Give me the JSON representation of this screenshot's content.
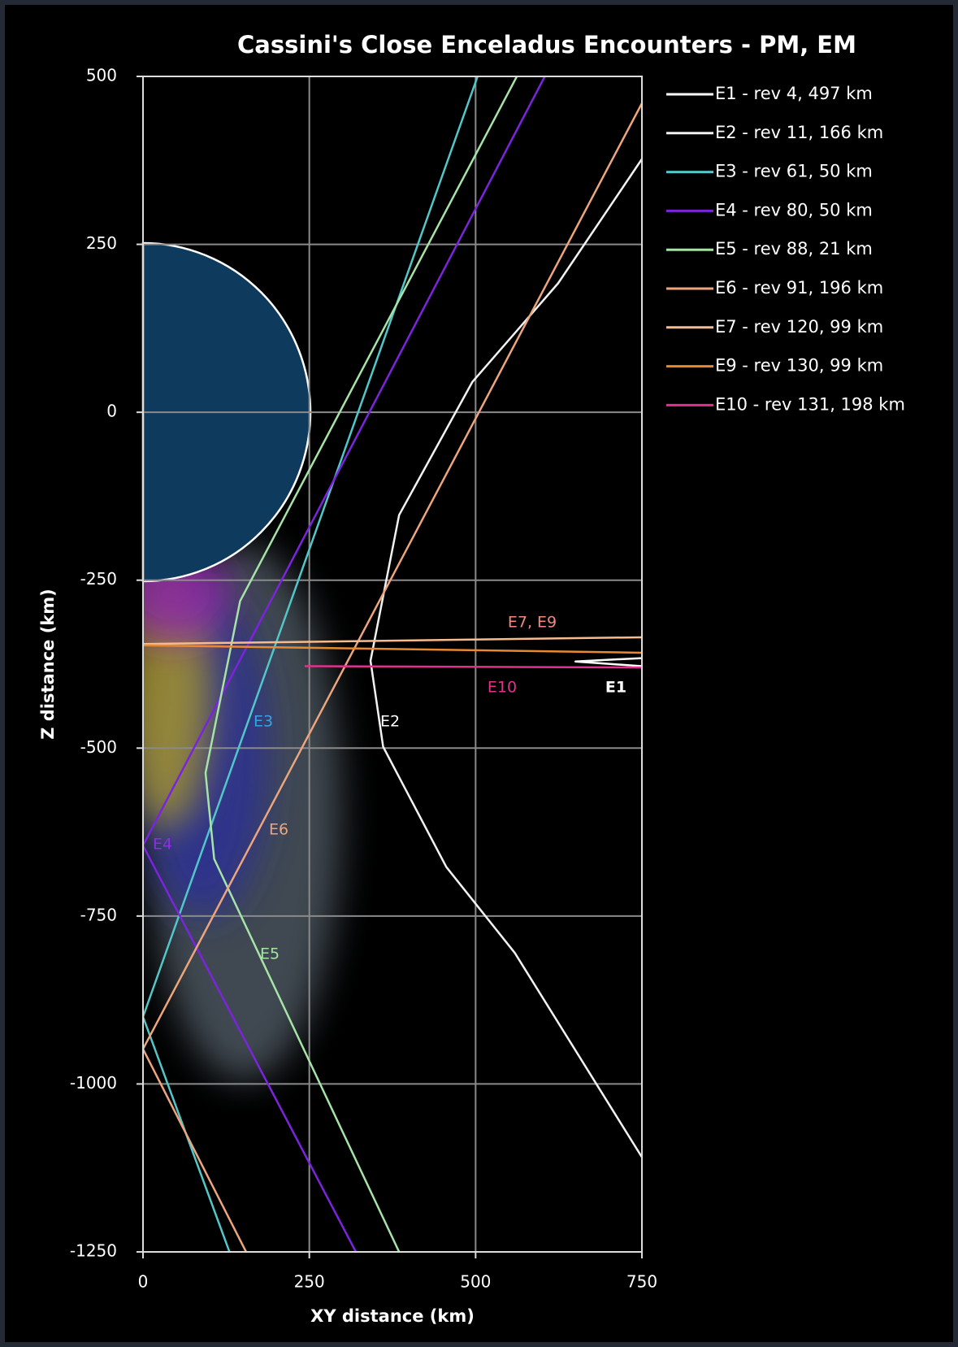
{
  "chart_data": {
    "type": "line",
    "title": "Cassini's Close Enceladus Encounters - PM, EM",
    "xlabel": "XY distance (km)",
    "ylabel": "Z distance (km)",
    "xlim": [
      0,
      750
    ],
    "ylim": [
      -1250,
      500
    ],
    "xticks": [
      0,
      250,
      500,
      750
    ],
    "yticks": [
      500,
      250,
      0,
      -250,
      -500,
      -750,
      -1000,
      -1250
    ],
    "grid": true,
    "legend": "right",
    "series": [
      {
        "name": "E1 - rev 4, 497 km",
        "color": "#ffffff",
        "x": [
          750,
          650,
          750
        ],
        "y": [
          -366,
          -371,
          -378
        ]
      },
      {
        "name": "E2 - rev 11, 166 km",
        "color": "#f2f2f2",
        "x": [
          750,
          624,
          495,
          385,
          342,
          361,
          456,
          559,
          750
        ],
        "y": [
          377,
          192,
          45,
          -153,
          -370,
          -498,
          -677,
          -805,
          -1109
        ]
      },
      {
        "name": "E3 - rev 61, 50 km",
        "color": "#52c6c8",
        "x": [
          503,
          0,
          130
        ],
        "y": [
          500,
          -900,
          -1250
        ]
      },
      {
        "name": "E4 - rev 80, 50 km",
        "color": "#7b24dc",
        "x": [
          604,
          0,
          320
        ],
        "y": [
          500,
          -645,
          -1250
        ]
      },
      {
        "name": "E5 - rev 88, 21 km",
        "color": "#a6e3a6",
        "x": [
          562,
          146,
          94,
          107,
          385
        ],
        "y": [
          500,
          -281,
          -537,
          -665,
          -1250
        ]
      },
      {
        "name": "E6 - rev 91, 196 km",
        "color": "#eda57c",
        "x": [
          750,
          0,
          155
        ],
        "y": [
          460,
          -948,
          -1250
        ]
      },
      {
        "name": "E7 - rev 120, 99 km",
        "color": "#f7bb8e",
        "x": [
          0,
          750
        ],
        "y": [
          -345,
          -335
        ]
      },
      {
        "name": "E9 - rev 130, 99 km",
        "color": "#e8892f",
        "x": [
          0,
          750
        ],
        "y": [
          -347,
          -358
        ]
      },
      {
        "name": "E10 - rev 131, 198 km",
        "color": "#e2308f",
        "x": [
          243,
          750
        ],
        "y": [
          -378,
          -380
        ]
      }
    ],
    "annotations": [
      {
        "text": "E7, E9",
        "color": "#f08a80"
      },
      {
        "text": "E10",
        "color": "#e2308f"
      },
      {
        "text": "E1",
        "color": "#ffffff"
      },
      {
        "text": "E3",
        "color": "#3aa0e6"
      },
      {
        "text": "E2",
        "color": "#ffffff"
      },
      {
        "text": "E6",
        "color": "#eda57c"
      },
      {
        "text": "E4",
        "color": "#8a30e0"
      },
      {
        "text": "E5",
        "color": "#a6e3a6"
      }
    ]
  }
}
